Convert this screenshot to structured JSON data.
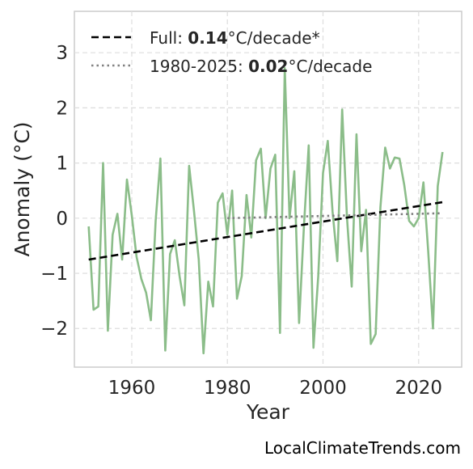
{
  "chart_data": {
    "type": "line",
    "xlabel": "Year",
    "ylabel": "Anomaly (°C)",
    "xlim": [
      1948,
      2029
    ],
    "ylim": [
      -2.7,
      3.75
    ],
    "xticks": [
      1960,
      1980,
      2000,
      2020
    ],
    "yticks": [
      -2,
      -1,
      0,
      1,
      2,
      3
    ],
    "xtick_labels": [
      "1960",
      "1980",
      "2000",
      "2020"
    ],
    "ytick_labels": [
      "−2",
      "−1",
      "0",
      "1",
      "2",
      "3"
    ],
    "grid": true,
    "legend_position": "top-left",
    "series": [
      {
        "color": "#8bbd89",
        "x": [
          1951,
          1952,
          1953,
          1954,
          1955,
          1956,
          1957,
          1958,
          1959,
          1960,
          1961,
          1962,
          1963,
          1964,
          1965,
          1966,
          1967,
          1968,
          1969,
          1970,
          1971,
          1972,
          1973,
          1974,
          1975,
          1976,
          1977,
          1978,
          1979,
          1980,
          1981,
          1982,
          1983,
          1984,
          1985,
          1986,
          1987,
          1988,
          1989,
          1990,
          1991,
          1992,
          1993,
          1994,
          1995,
          1996,
          1997,
          1998,
          1999,
          2000,
          2001,
          2002,
          2003,
          2004,
          2005,
          2006,
          2007,
          2008,
          2009,
          2010,
          2011,
          2012,
          2013,
          2014,
          2015,
          2016,
          2017,
          2018,
          2019,
          2020,
          2021,
          2022,
          2023,
          2024,
          2025
        ],
        "y": [
          -0.15,
          -1.66,
          -1.6,
          1.0,
          -2.04,
          -0.3,
          0.08,
          -0.75,
          0.7,
          0.05,
          -0.7,
          -1.1,
          -1.35,
          -1.85,
          -0.05,
          1.08,
          -2.4,
          -0.65,
          -0.4,
          -1.05,
          -1.58,
          0.95,
          0.15,
          -0.75,
          -2.45,
          -1.15,
          -1.6,
          0.28,
          0.45,
          -0.3,
          0.5,
          -1.46,
          -1.05,
          0.42,
          -0.35,
          1.05,
          1.26,
          0.0,
          0.9,
          1.15,
          -2.08,
          2.72,
          0.0,
          0.85,
          -1.9,
          -0.15,
          1.32,
          -2.35,
          -1.05,
          0.82,
          1.4,
          0.12,
          -0.78,
          1.97,
          0.02,
          -1.24,
          1.52,
          -0.6,
          0.15,
          -2.28,
          -2.1,
          0.2,
          1.28,
          0.9,
          1.1,
          1.08,
          0.6,
          -0.05,
          -0.15,
          0.0,
          0.65,
          -0.6,
          -2.0,
          0.58,
          1.2
        ]
      },
      {
        "name_label": "Full: ",
        "name_value": "0.14",
        "name_unit": "°C/decade*",
        "color": "#000000",
        "style": "dashed",
        "x": [
          1951,
          2025
        ],
        "y": [
          -0.75,
          0.29
        ]
      },
      {
        "name_label": "1980-2025: ",
        "name_value": "0.02",
        "name_unit": "°C/decade",
        "color": "#808080",
        "style": "dotted",
        "x": [
          1980,
          2025
        ],
        "y": [
          0.0,
          0.09
        ]
      }
    ]
  },
  "watermark": "LocalClimateTrends.com"
}
